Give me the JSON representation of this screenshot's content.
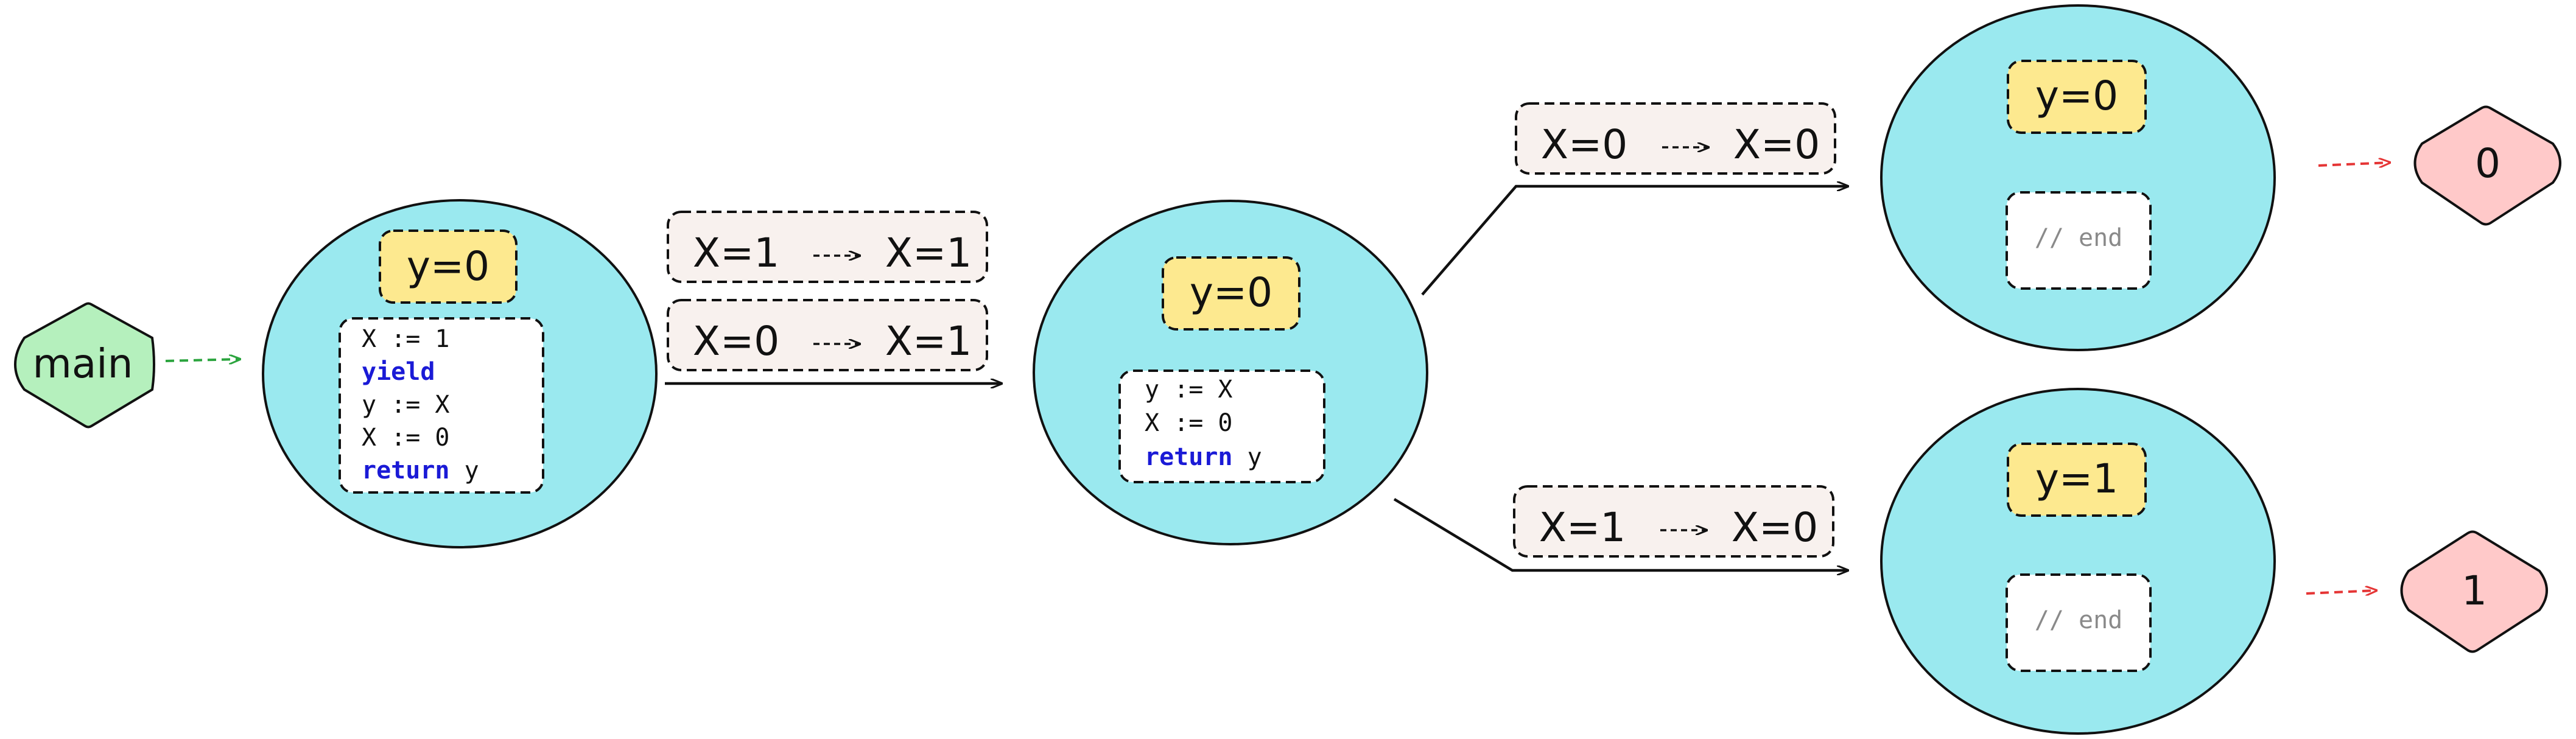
{
  "colors": {
    "start_node": "#b5f0bd",
    "state_circle": "#9ae9ef",
    "value_box": "#fde98f",
    "transition_box": "#f8f1ee",
    "result_node": "#ffc9c9",
    "start_arrow": "#2ba43e",
    "end_arrow": "#e53535",
    "keyword": "#1a1ad6",
    "comment": "#8a8a8a"
  },
  "nodes": {
    "main": {
      "label": "main",
      "icon": "diamond"
    },
    "s1": {
      "value": "y=0",
      "code": [
        {
          "text": "X := 1",
          "kind": "plain"
        },
        {
          "text": "yield",
          "kind": "keyword"
        },
        {
          "text": "y := X",
          "kind": "plain"
        },
        {
          "text": "X := 0",
          "kind": "plain"
        },
        {
          "kw": "return",
          "rest": " y",
          "kind": "mixed"
        }
      ]
    },
    "s2": {
      "value": "y=0",
      "code": [
        {
          "text": "y := X",
          "kind": "plain"
        },
        {
          "text": "X := 0",
          "kind": "plain"
        },
        {
          "kw": "return",
          "rest": " y",
          "kind": "mixed"
        }
      ]
    },
    "s3": {
      "value": "y=0",
      "code": "// end"
    },
    "s4": {
      "value": "y=1",
      "code": "// end"
    },
    "r0": {
      "label": "0",
      "icon": "diamond"
    },
    "r1": {
      "label": "1",
      "icon": "diamond"
    }
  },
  "transitions": {
    "t1a": {
      "from": "X=1",
      "to": "X=1"
    },
    "t1b": {
      "from": "X=0",
      "to": "X=1"
    },
    "t2": {
      "from": "X=0",
      "to": "X=0"
    },
    "t3": {
      "from": "X=1",
      "to": "X=0"
    }
  }
}
